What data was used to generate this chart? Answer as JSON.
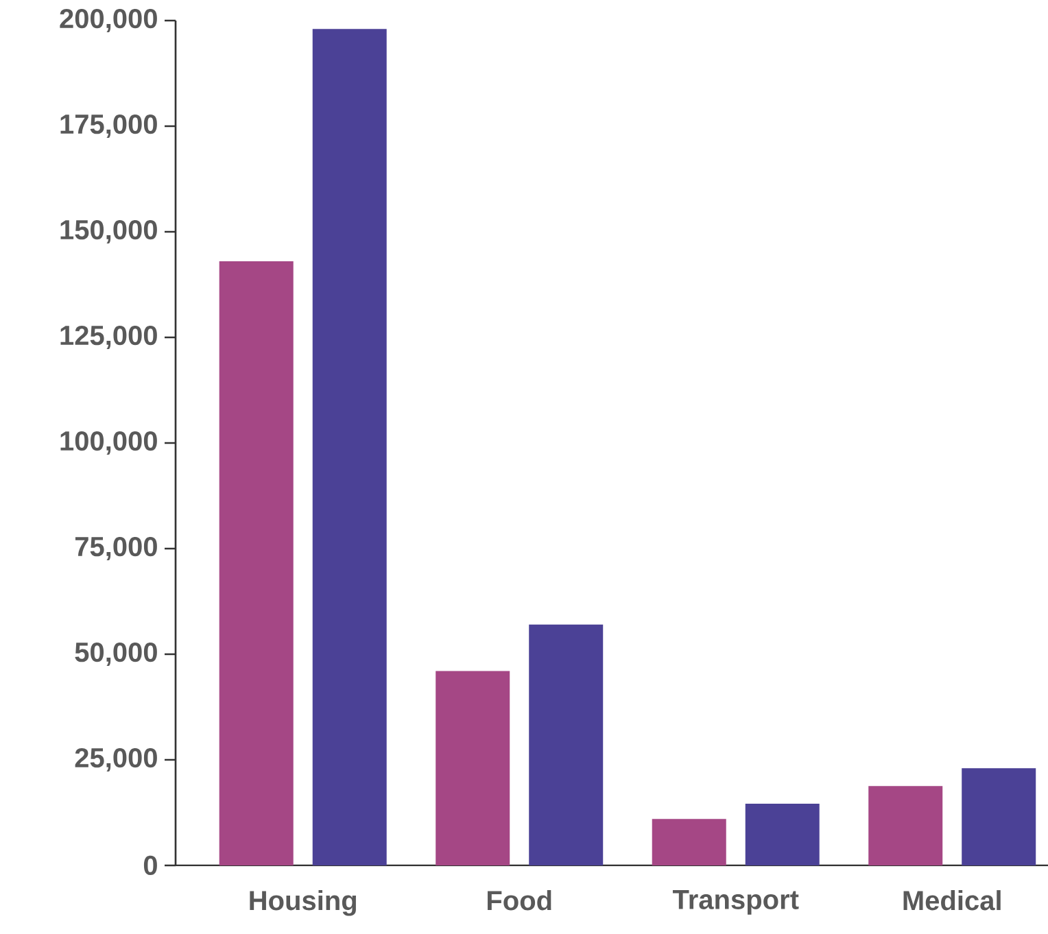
{
  "chart_data": {
    "type": "bar",
    "categories": [
      "Housing",
      "Food",
      "Transport",
      "Medical"
    ],
    "series": [
      {
        "color": "#a54785",
        "values": [
          143000,
          46000,
          11000,
          18800
        ]
      },
      {
        "color": "#4b4196",
        "values": [
          198000,
          57000,
          14600,
          23000
        ]
      }
    ],
    "ylim": [
      0,
      200000
    ],
    "yticks": [
      {
        "value": 0,
        "label": "0"
      },
      {
        "value": 25000,
        "label": "25,000"
      },
      {
        "value": 50000,
        "label": "50,000"
      },
      {
        "value": 75000,
        "label": "75,000"
      },
      {
        "value": 100000,
        "label": "100,000"
      },
      {
        "value": 125000,
        "label": "125,000"
      },
      {
        "value": 150000,
        "label": "150,000"
      },
      {
        "value": 175000,
        "label": "175,000"
      },
      {
        "value": 200000,
        "label": "200,000"
      }
    ],
    "grid": false
  }
}
